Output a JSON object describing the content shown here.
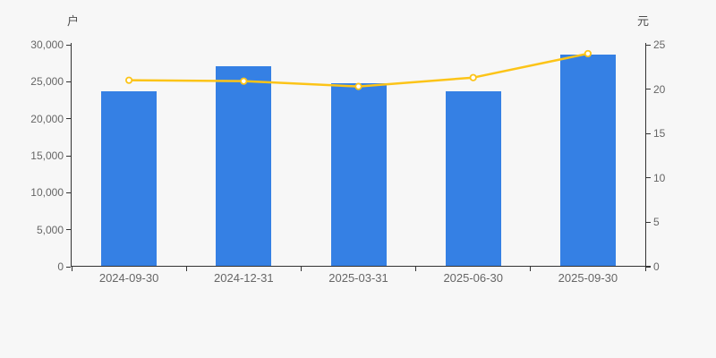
{
  "chart_data": {
    "type": "bar",
    "title": "",
    "categories": [
      "2024-09-30",
      "2024-12-31",
      "2025-03-31",
      "2025-06-30",
      "2025-09-30"
    ],
    "series": [
      {
        "name": "households-bar",
        "type": "bar",
        "axis": "left",
        "unit": "户",
        "values": [
          23750,
          27050,
          24850,
          23700,
          28650
        ]
      },
      {
        "name": "price-line",
        "type": "line",
        "axis": "right",
        "unit": "元",
        "values": [
          21.0,
          20.9,
          20.3,
          21.3,
          24.0
        ]
      }
    ],
    "left_axis": {
      "name": "户",
      "min": 0,
      "max": 30000,
      "tick_labels": [
        "0",
        "5,000",
        "10,000",
        "15,000",
        "20,000",
        "25,000",
        "30,000"
      ]
    },
    "right_axis": {
      "name": "元",
      "min": 0,
      "max": 25,
      "tick_labels": [
        "0",
        "5",
        "10",
        "15",
        "20",
        "25"
      ]
    },
    "grid": false,
    "legend": false
  },
  "colors": {
    "background": "#f7f7f7",
    "bar_fill": "#3580e4",
    "line_stroke": "#fcc418",
    "marker_fill": "#ffffff",
    "axis_line": "#333333",
    "tick_text": "#666666",
    "unit_text": "#4d4d4d"
  }
}
